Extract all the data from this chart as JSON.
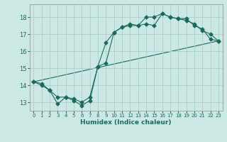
{
  "xlabel": "Humidex (Indice chaleur)",
  "ylabel": "",
  "bg_color": "#cce8e4",
  "grid_color": "#aacfcb",
  "line_color": "#1a6b5a",
  "xlim": [
    -0.5,
    23.5
  ],
  "ylim": [
    12.5,
    18.75
  ],
  "xticks": [
    0,
    1,
    2,
    3,
    4,
    5,
    6,
    7,
    8,
    9,
    10,
    11,
    12,
    13,
    14,
    15,
    16,
    17,
    18,
    19,
    20,
    21,
    22,
    23
  ],
  "yticks": [
    13,
    14,
    15,
    16,
    17,
    18
  ],
  "line1_x": [
    0,
    1,
    2,
    3,
    4,
    5,
    6,
    7,
    8,
    9,
    10,
    11,
    12,
    13,
    14,
    15,
    16,
    17,
    18,
    19,
    20,
    21,
    22,
    23
  ],
  "line1_y": [
    14.2,
    14.1,
    13.7,
    12.9,
    13.3,
    13.1,
    12.8,
    13.1,
    15.1,
    16.5,
    17.1,
    17.4,
    17.6,
    17.5,
    18.0,
    18.0,
    18.2,
    18.0,
    17.9,
    17.9,
    17.5,
    17.3,
    16.7,
    16.6
  ],
  "line2_x": [
    0,
    1,
    2,
    3,
    4,
    5,
    6,
    7,
    8,
    9,
    10,
    11,
    12,
    13,
    14,
    15,
    16,
    17,
    18,
    19,
    20,
    21,
    22,
    23
  ],
  "line2_y": [
    14.2,
    14.0,
    13.7,
    13.3,
    13.3,
    13.2,
    13.0,
    13.3,
    15.1,
    15.3,
    17.1,
    17.4,
    17.5,
    17.5,
    17.6,
    17.5,
    18.2,
    18.0,
    17.9,
    17.8,
    17.6,
    17.2,
    17.0,
    16.6
  ],
  "line3_x": [
    0,
    23
  ],
  "line3_y": [
    14.2,
    16.6
  ]
}
